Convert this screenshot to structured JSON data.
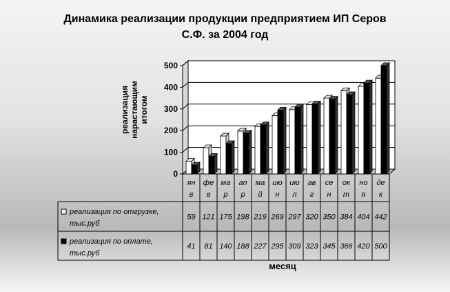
{
  "chart_data": {
    "type": "bar",
    "title": "Динамика реализации продукции предприятием ИП Серов\nС.Ф. за 2004 год",
    "ylabel": "реализация\nнарастающим\nитогом",
    "xlabel": "месяц",
    "ylim": [
      0,
      500
    ],
    "yticks": [
      0,
      100,
      200,
      300,
      400,
      500
    ],
    "grid": true,
    "legend": "table",
    "categories": [
      [
        "ян",
        "в"
      ],
      [
        "фе",
        "в"
      ],
      [
        "ма",
        "р"
      ],
      [
        "ап",
        "р"
      ],
      [
        "ма",
        "й"
      ],
      [
        "ию",
        "н"
      ],
      [
        "ию",
        "л"
      ],
      [
        "ав",
        "г"
      ],
      [
        "се",
        "н"
      ],
      [
        "ок",
        "т"
      ],
      [
        "но",
        "я"
      ],
      [
        "де",
        "к"
      ]
    ],
    "series": [
      {
        "name": "реализация по отгрузке, тыс.руб",
        "name_lines": [
          "реализация по отгрузке,",
          "тыс.руб"
        ],
        "color": "#ffffff",
        "values": [
          59,
          121,
          175,
          198,
          219,
          269,
          297,
          320,
          350,
          384,
          404,
          442
        ]
      },
      {
        "name": "реализация по оплате, тыс.руб",
        "name_lines": [
          "реализация по оплате,",
          "тыс.руб"
        ],
        "color": "#000000",
        "values": [
          41,
          81,
          140,
          188,
          227,
          295,
          309,
          323,
          345,
          366,
          420,
          500
        ]
      }
    ]
  }
}
